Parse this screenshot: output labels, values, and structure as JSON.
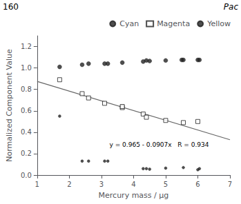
{
  "chart_data": {
    "type": "scatter",
    "header_left": "160",
    "header_right": "Pac",
    "annotation": "y = 0.965 - 0.0907x   R = 0.934",
    "xlabel": "Mercury mass / μg",
    "ylabel": "Normalized Component Value",
    "series": [
      {
        "name": "Cyan",
        "type": "scatter",
        "marker": "circle",
        "color": "#222222",
        "x": [
          1.7,
          2.4,
          2.6,
          3.1,
          3.2,
          3.65,
          4.3,
          4.4,
          4.5,
          5.0,
          5.5,
          5.55,
          6.0,
          6.05
        ],
        "values": [
          1.01,
          1.03,
          1.04,
          1.04,
          1.04,
          1.05,
          1.06,
          1.07,
          1.065,
          1.07,
          1.075,
          1.075,
          1.075,
          1.075
        ]
      },
      {
        "name": "Magenta",
        "type": "scatter",
        "marker": "square_open",
        "color": "#222222",
        "x": [
          1.7,
          2.4,
          2.6,
          3.1,
          3.65,
          3.65,
          4.3,
          4.4,
          5.0,
          5.55,
          6.0
        ],
        "values": [
          0.89,
          0.76,
          0.72,
          0.67,
          0.63,
          0.64,
          0.57,
          0.54,
          0.51,
          0.49,
          0.5
        ]
      },
      {
        "name": "Yellow",
        "type": "scatter",
        "marker": "dot",
        "color": "#222222",
        "x": [
          1.7,
          2.4,
          2.6,
          3.1,
          3.2,
          4.3,
          4.4,
          4.5,
          5.0,
          5.55,
          6.0,
          6.05
        ],
        "values": [
          0.55,
          0.13,
          0.13,
          0.13,
          0.13,
          0.06,
          0.06,
          0.055,
          0.065,
          0.07,
          0.05,
          0.06
        ]
      },
      {
        "type": "line",
        "line_style": "solid",
        "color": "#666666",
        "x": [
          1.0,
          7.0
        ],
        "values": [
          0.8743,
          0.3301
        ]
      }
    ],
    "xlim": [
      1.0,
      7.0
    ],
    "ylim": [
      0.0,
      1.3
    ],
    "xticks": [
      1,
      2,
      3,
      4,
      5,
      6,
      7
    ],
    "yticks": [
      {
        "value": 0.0,
        "label": "0.0"
      },
      0.2,
      0.4,
      0.6,
      0.8,
      {
        "value": 1.0,
        "label": "1.0"
      },
      1.2
    ],
    "grid": false,
    "legend": "upper right"
  }
}
